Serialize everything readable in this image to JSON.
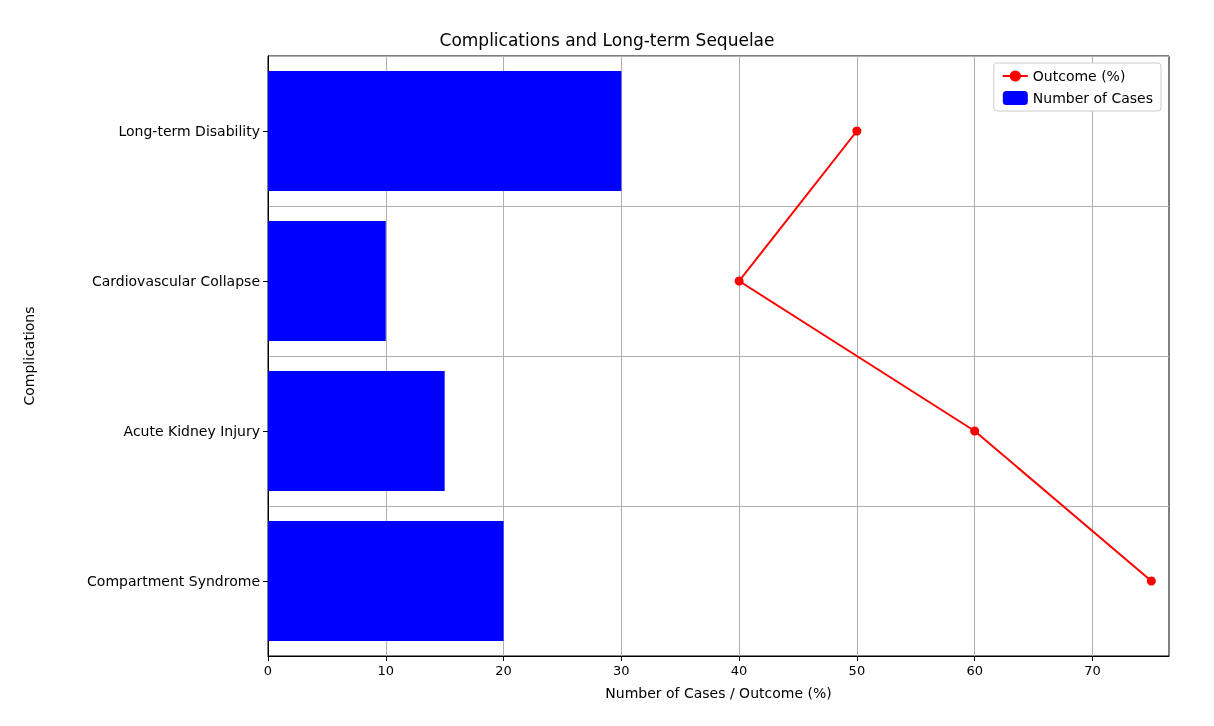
{
  "chart_data": {
    "type": "bar",
    "orientation": "horizontal",
    "title": "Complications and Long-term Sequelae",
    "xlabel": "Number of Cases / Outcome (%)",
    "ylabel": "Complications",
    "categories": [
      "Long-term Disability",
      "Cardiovascular Collapse",
      "Acute Kidney Injury",
      "Compartment Syndrome"
    ],
    "series": [
      {
        "name": "Outcome (%)",
        "type": "line",
        "color": "#ff0000",
        "values": [
          50,
          40,
          60,
          75
        ]
      },
      {
        "name": "Number of Cases",
        "color": "#0000ff",
        "values": [
          30,
          10,
          15,
          20
        ]
      }
    ],
    "xlim": [
      0,
      76.5
    ],
    "xticks": [
      0,
      10,
      20,
      30,
      40,
      50,
      60,
      70
    ],
    "grid": true,
    "legend": "top right",
    "marker": "circle",
    "line_style": "solid"
  }
}
